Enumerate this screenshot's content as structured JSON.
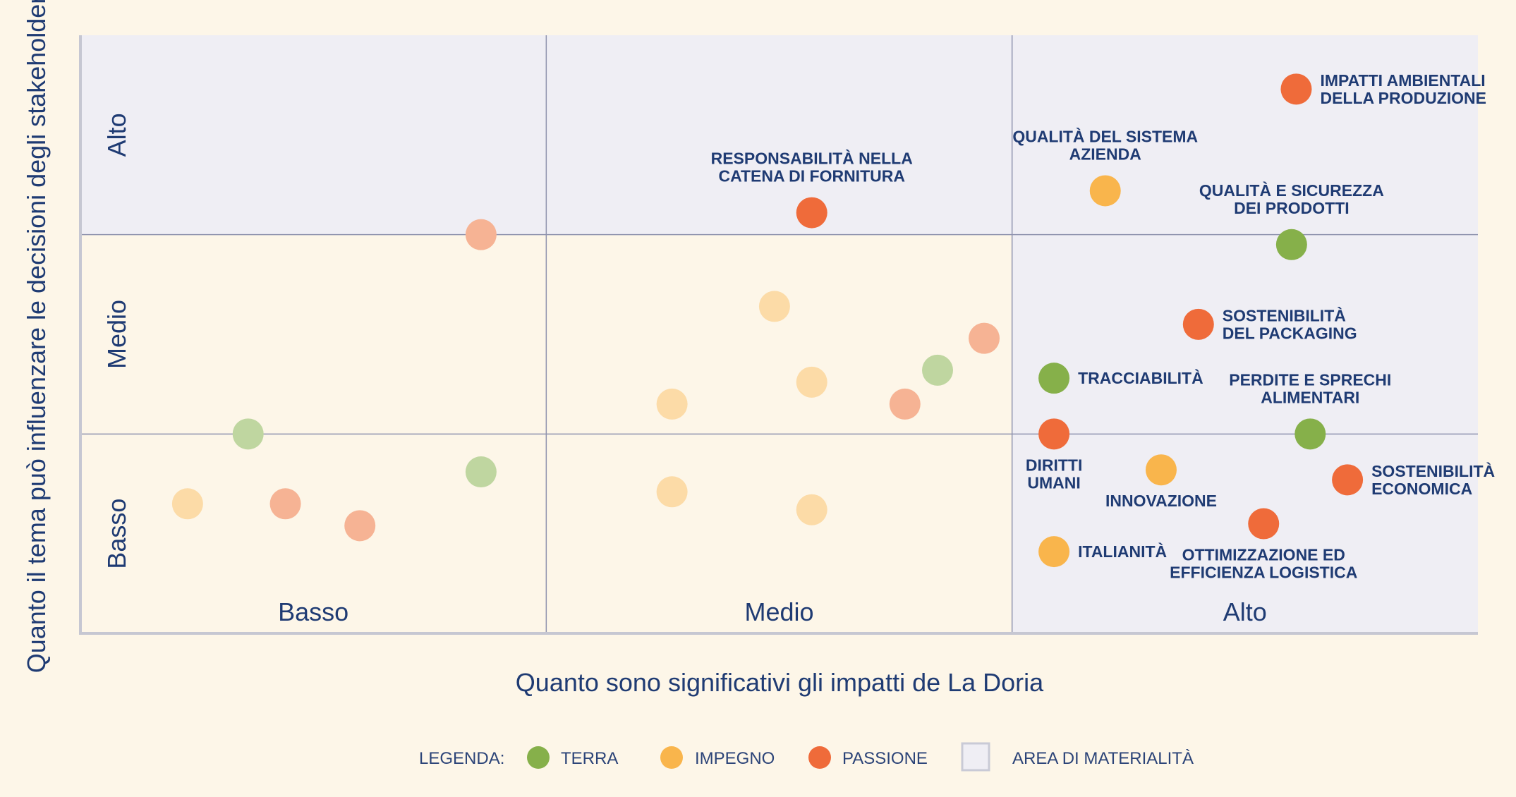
{
  "chart_data": {
    "type": "scatter",
    "xlabel": "Quanto sono significativi gli impatti de La Doria",
    "ylabel": "Quanto il tema può influenzare le decisioni degli stakeholder",
    "xlim": [
      0,
      3
    ],
    "ylim": [
      0,
      3
    ],
    "x_categories": [
      "Basso",
      "Medio",
      "Alto"
    ],
    "y_categories": [
      "Basso",
      "Medio",
      "Alto"
    ],
    "colors": {
      "terra": "#86b04a",
      "impegno": "#f9b54c",
      "passione": "#ef6b3a",
      "terra_faded": "#bfd6a0",
      "impegno_faded": "#fcdba7",
      "passione_faded": "#f6b394",
      "materiality_area": "#efeef4",
      "grid": "#8f93ae",
      "text": "#1f3b73"
    },
    "legend": {
      "title": "LEGENDA:",
      "items": [
        {
          "key": "terra",
          "label": "TERRA"
        },
        {
          "key": "impegno",
          "label": "IMPEGNO"
        },
        {
          "key": "passione",
          "label": "PASSIONE"
        },
        {
          "key": "area",
          "label": "AREA DI MATERIALITÀ"
        }
      ]
    },
    "materiality_area": [
      {
        "x": [
          0,
          3
        ],
        "y": [
          2,
          3
        ]
      },
      {
        "x": [
          2,
          3
        ],
        "y": [
          0,
          2
        ]
      }
    ],
    "points": [
      {
        "label": [
          "IMPATTI AMBIENTALI",
          "DELLA PRODUZIONE"
        ],
        "category": "passione",
        "x": 2.61,
        "y": 2.73
      },
      {
        "label": [
          "QUALITÀ DEL SISTEMA",
          "AZIENDA"
        ],
        "category": "impegno",
        "x": 2.2,
        "y": 2.22
      },
      {
        "label": [
          "RESPONSABILITÀ NELLA",
          "CATENA DI FORNITURA"
        ],
        "category": "passione",
        "x": 1.57,
        "y": 2.11
      },
      {
        "label": [
          "QUALITÀ E SICUREZZA",
          "DEI PRODOTTI"
        ],
        "category": "terra",
        "x": 2.6,
        "y": 1.95
      },
      {
        "label": [
          "SOSTENIBILITÀ",
          "DEL PACKAGING"
        ],
        "category": "passione",
        "x": 2.4,
        "y": 1.55
      },
      {
        "label": [
          "TRACCIABILITÀ"
        ],
        "category": "terra",
        "x": 2.09,
        "y": 1.28
      },
      {
        "label": [
          "PERDITE E SPRECHI",
          "ALIMENTARI"
        ],
        "category": "terra",
        "x": 2.64,
        "y": 1.0
      },
      {
        "label": [
          "DIRITTI",
          "UMANI"
        ],
        "category": "passione",
        "x": 2.09,
        "y": 1.0
      },
      {
        "label": [
          "INNOVAZIONE"
        ],
        "category": "impegno",
        "x": 2.32,
        "y": 0.82
      },
      {
        "label": [
          "SOSTENIBILITÀ",
          "ECONOMICA"
        ],
        "category": "passione",
        "x": 2.72,
        "y": 0.77
      },
      {
        "label": [
          "OTTIMIZZAZIONE ED",
          "EFFICIENZA LOGISTICA"
        ],
        "category": "passione",
        "x": 2.54,
        "y": 0.55
      },
      {
        "label": [
          "ITALIANITÀ"
        ],
        "category": "impegno",
        "x": 2.09,
        "y": 0.41
      },
      {
        "label": [],
        "category": "passione_faded",
        "x": 0.86,
        "y": 2.0
      },
      {
        "label": [],
        "category": "impegno_faded",
        "x": 1.49,
        "y": 1.64
      },
      {
        "label": [],
        "category": "passione_faded",
        "x": 1.94,
        "y": 1.48
      },
      {
        "label": [],
        "category": "terra_faded",
        "x": 1.84,
        "y": 1.32
      },
      {
        "label": [],
        "category": "impegno_faded",
        "x": 1.57,
        "y": 1.26
      },
      {
        "label": [],
        "category": "impegno_faded",
        "x": 1.27,
        "y": 1.15
      },
      {
        "label": [],
        "category": "passione_faded",
        "x": 1.77,
        "y": 1.15
      },
      {
        "label": [],
        "category": "terra_faded",
        "x": 0.36,
        "y": 1.0
      },
      {
        "label": [],
        "category": "terra_faded",
        "x": 0.86,
        "y": 0.81
      },
      {
        "label": [],
        "category": "impegno_faded",
        "x": 1.27,
        "y": 0.71
      },
      {
        "label": [],
        "category": "impegno_faded",
        "x": 0.23,
        "y": 0.65
      },
      {
        "label": [],
        "category": "passione_faded",
        "x": 0.44,
        "y": 0.65
      },
      {
        "label": [],
        "category": "passione_faded",
        "x": 0.6,
        "y": 0.54
      },
      {
        "label": [],
        "category": "impegno_faded",
        "x": 1.57,
        "y": 0.62
      }
    ]
  }
}
